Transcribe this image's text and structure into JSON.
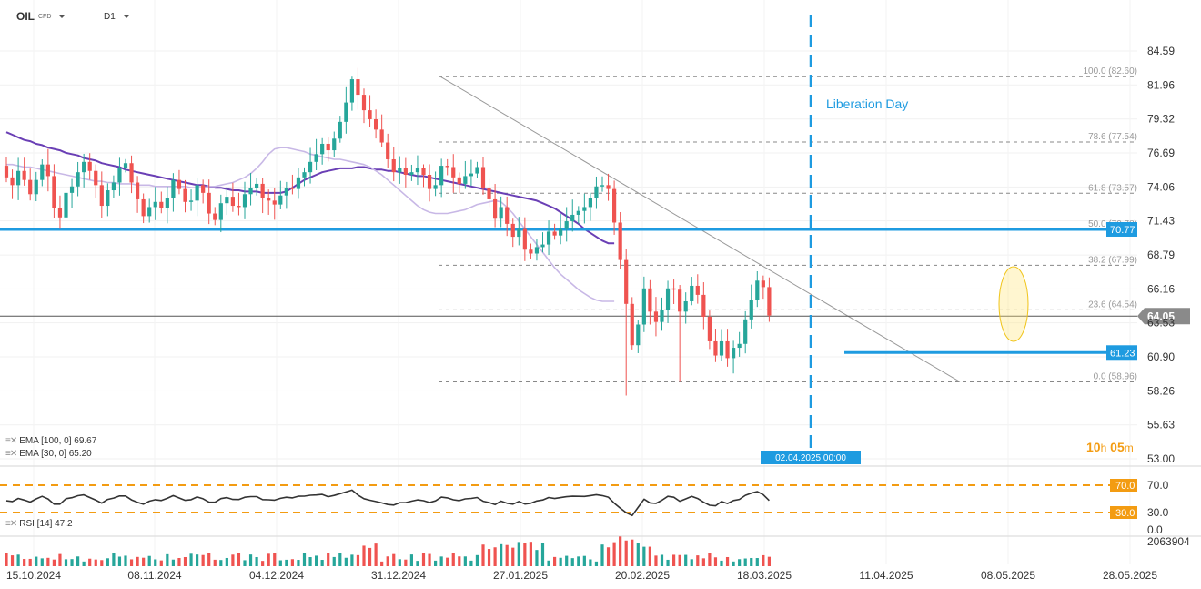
{
  "header": {
    "symbol": "OIL",
    "symbol_type": "CFD",
    "timeframe": "D1"
  },
  "indicators": {
    "ema100_label": "EMA [100, 0] 69.67",
    "ema30_label": "EMA [30, 0] 65.20",
    "rsi_label": "RSI [14] 47.2"
  },
  "countdown": {
    "hours": "10",
    "h_unit": "h",
    "minutes": "05",
    "m_unit": "m"
  },
  "colors": {
    "bull": "#26a69a",
    "bear": "#ef5350",
    "ema100": "#6a3fb5",
    "ema30": "#c8b8e6",
    "level": "#1e9be0",
    "fib": "#888888",
    "rsi_level": "#f39c12",
    "accent_blue": "#1e9be0"
  },
  "chart_data": {
    "type": "candlestick",
    "price_axis": {
      "ticks": [
        "84.59",
        "81.96",
        "79.32",
        "76.69",
        "74.06",
        "71.43",
        "68.79",
        "66.16",
        "63.53",
        "60.90",
        "58.26",
        "55.63",
        "53.00"
      ]
    },
    "date_labels": [
      "15.10.2024",
      "08.11.2024",
      "04.12.2024",
      "31.12.2024",
      "27.01.2025",
      "20.02.2025",
      "18.03.2025",
      "11.04.2025",
      "08.05.2025",
      "28.05.2025"
    ],
    "last_price": "64.05",
    "support_resistance": [
      {
        "value": 70.77,
        "label": "70.77"
      },
      {
        "value": 61.23,
        "label": "61.23"
      }
    ],
    "fibonacci": [
      {
        "value": 82.6,
        "label": "100.0 (82.60)"
      },
      {
        "value": 77.54,
        "label": "78.6 (77.54)"
      },
      {
        "value": 73.57,
        "label": "61.8 (73.57)"
      },
      {
        "value": 70.78,
        "label": "50.0 (70.78)"
      },
      {
        "value": 67.99,
        "label": "38.2 (67.99)"
      },
      {
        "value": 64.54,
        "label": "23.6 (64.54)"
      },
      {
        "value": 58.96,
        "label": "0.0 (58.96)"
      }
    ],
    "event": {
      "label": "Liberation Day",
      "date_label": "02.04.2025 00:00"
    },
    "ema100": [
      78.3,
      78.1,
      77.9,
      77.7,
      77.6,
      77.4,
      77.3,
      77.1,
      77.0,
      76.9,
      76.7,
      76.6,
      76.5,
      76.3,
      76.2,
      76.1,
      75.9,
      75.8,
      75.7,
      75.6,
      75.4,
      75.3,
      75.2,
      75.1,
      75.0,
      74.9,
      74.8,
      74.7,
      74.6,
      74.5,
      74.4,
      74.3,
      74.2,
      74.2,
      74.1,
      74.0,
      74.0,
      73.9,
      73.8,
      73.8,
      73.7,
      73.7,
      73.7,
      73.6,
      73.6,
      73.6,
      73.6,
      73.7,
      74.0,
      74.3,
      74.6,
      74.8,
      75.0,
      75.2,
      75.3,
      75.4,
      75.5,
      75.5,
      75.5,
      75.6,
      75.6,
      75.5,
      75.4,
      75.4,
      75.3,
      75.3,
      75.2,
      75.1,
      75.0,
      74.9,
      74.9,
      74.8,
      74.7,
      74.6,
      74.5,
      74.4,
      74.3,
      74.2,
      74.1,
      74.0,
      73.9,
      73.8,
      73.7,
      73.6,
      73.5,
      73.4,
      73.3,
      73.2,
      73.1,
      73.0,
      72.8,
      72.6,
      72.4,
      72.1,
      71.8,
      71.5,
      71.2,
      70.8,
      70.5,
      70.2,
      69.9,
      69.7,
      69.7
    ],
    "ema30": [
      75.8,
      75.8,
      75.7,
      75.6,
      75.6,
      75.5,
      75.4,
      75.3,
      75.2,
      75.1,
      75.0,
      74.9,
      74.8,
      74.7,
      74.6,
      74.5,
      74.5,
      74.4,
      74.4,
      74.3,
      74.3,
      74.3,
      74.2,
      74.2,
      74.2,
      74.1,
      74.1,
      74.1,
      74.1,
      74.1,
      74.1,
      74.0,
      74.0,
      74.0,
      74.1,
      74.1,
      74.2,
      74.3,
      74.4,
      74.6,
      74.8,
      75.1,
      75.5,
      76.0,
      76.6,
      77.0,
      77.1,
      77.1,
      77.0,
      76.9,
      76.8,
      76.6,
      76.5,
      76.4,
      76.3,
      76.2,
      76.2,
      76.1,
      76.0,
      75.9,
      75.8,
      75.6,
      75.3,
      75.0,
      74.6,
      74.2,
      73.8,
      73.4,
      73.0,
      72.6,
      72.3,
      72.1,
      72.0,
      72.0,
      72.0,
      72.1,
      72.2,
      72.3,
      72.5,
      72.7,
      72.8,
      72.9,
      73.0,
      72.9,
      72.5,
      72.0,
      71.4,
      70.8,
      70.2,
      69.6,
      69.0,
      68.4,
      67.8,
      67.3,
      66.9,
      66.5,
      66.1,
      65.8,
      65.5,
      65.3,
      65.2,
      65.2,
      65.2
    ],
    "close": [
      74.8,
      74.2,
      75.3,
      74.6,
      73.5,
      74.6,
      75.8,
      74.9,
      72.4,
      71.7,
      73.6,
      74.1,
      75.2,
      76.0,
      75.3,
      74.2,
      72.6,
      73.8,
      74.4,
      75.5,
      75.9,
      74.4,
      73.1,
      71.8,
      72.5,
      72.9,
      72.4,
      73.2,
      74.6,
      73.9,
      72.9,
      73.0,
      74.2,
      73.6,
      72.0,
      71.5,
      72.8,
      73.3,
      72.6,
      72.5,
      73.5,
      74.0,
      74.3,
      73.2,
      73.0,
      72.7,
      73.4,
      74.0,
      73.9,
      74.8,
      75.2,
      76.0,
      76.6,
      77.4,
      76.9,
      77.8,
      79.1,
      80.6,
      82.4,
      81.2,
      80.0,
      79.3,
      78.5,
      77.5,
      76.2,
      75.2,
      75.5,
      75.0,
      75.2,
      75.5,
      75.0,
      73.9,
      74.2,
      75.7,
      75.6,
      74.8,
      74.3,
      74.9,
      75.1,
      75.6,
      74.0,
      73.1,
      71.6,
      72.5,
      71.2,
      70.2,
      70.8,
      69.2,
      68.9,
      69.4,
      69.6,
      70.6,
      70.3,
      70.8,
      71.4,
      71.9,
      72.2,
      72.5,
      73.2,
      74.1,
      74.2,
      73.9,
      71.3,
      68.4,
      65.0,
      61.8,
      63.4,
      66.2,
      64.4,
      63.6,
      64.5,
      66.2,
      66.1,
      64.4,
      65.2,
      66.4,
      65.7,
      64.0,
      62.1,
      61.0,
      62.1,
      60.8,
      61.6,
      61.9,
      63.8,
      65.3,
      66.8,
      66.3,
      64.1
    ]
  }
}
